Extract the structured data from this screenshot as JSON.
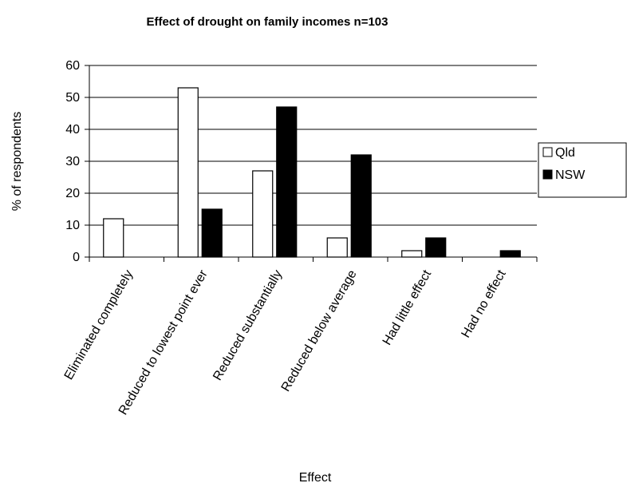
{
  "chart_data": {
    "type": "bar",
    "title": "Effect of drought on family incomes n=103",
    "xlabel": "Effect",
    "ylabel": "% of respondents",
    "categories": [
      "Eliminated completely",
      "Reduced to lowest point ever",
      "Reduced substantially",
      "Reduced below average",
      "Had little effect",
      "Had no effect"
    ],
    "series": [
      {
        "name": "Qld",
        "color": "#ffffff",
        "values": [
          12,
          53,
          27,
          6,
          2,
          0
        ]
      },
      {
        "name": "NSW",
        "color": "#000000",
        "values": [
          0,
          15,
          47,
          32,
          6,
          2
        ]
      }
    ],
    "ylim": [
      0,
      60
    ],
    "yticks": [
      "0",
      "10",
      "20",
      "30",
      "40",
      "50",
      "60"
    ],
    "grid": true,
    "legend": "right"
  }
}
